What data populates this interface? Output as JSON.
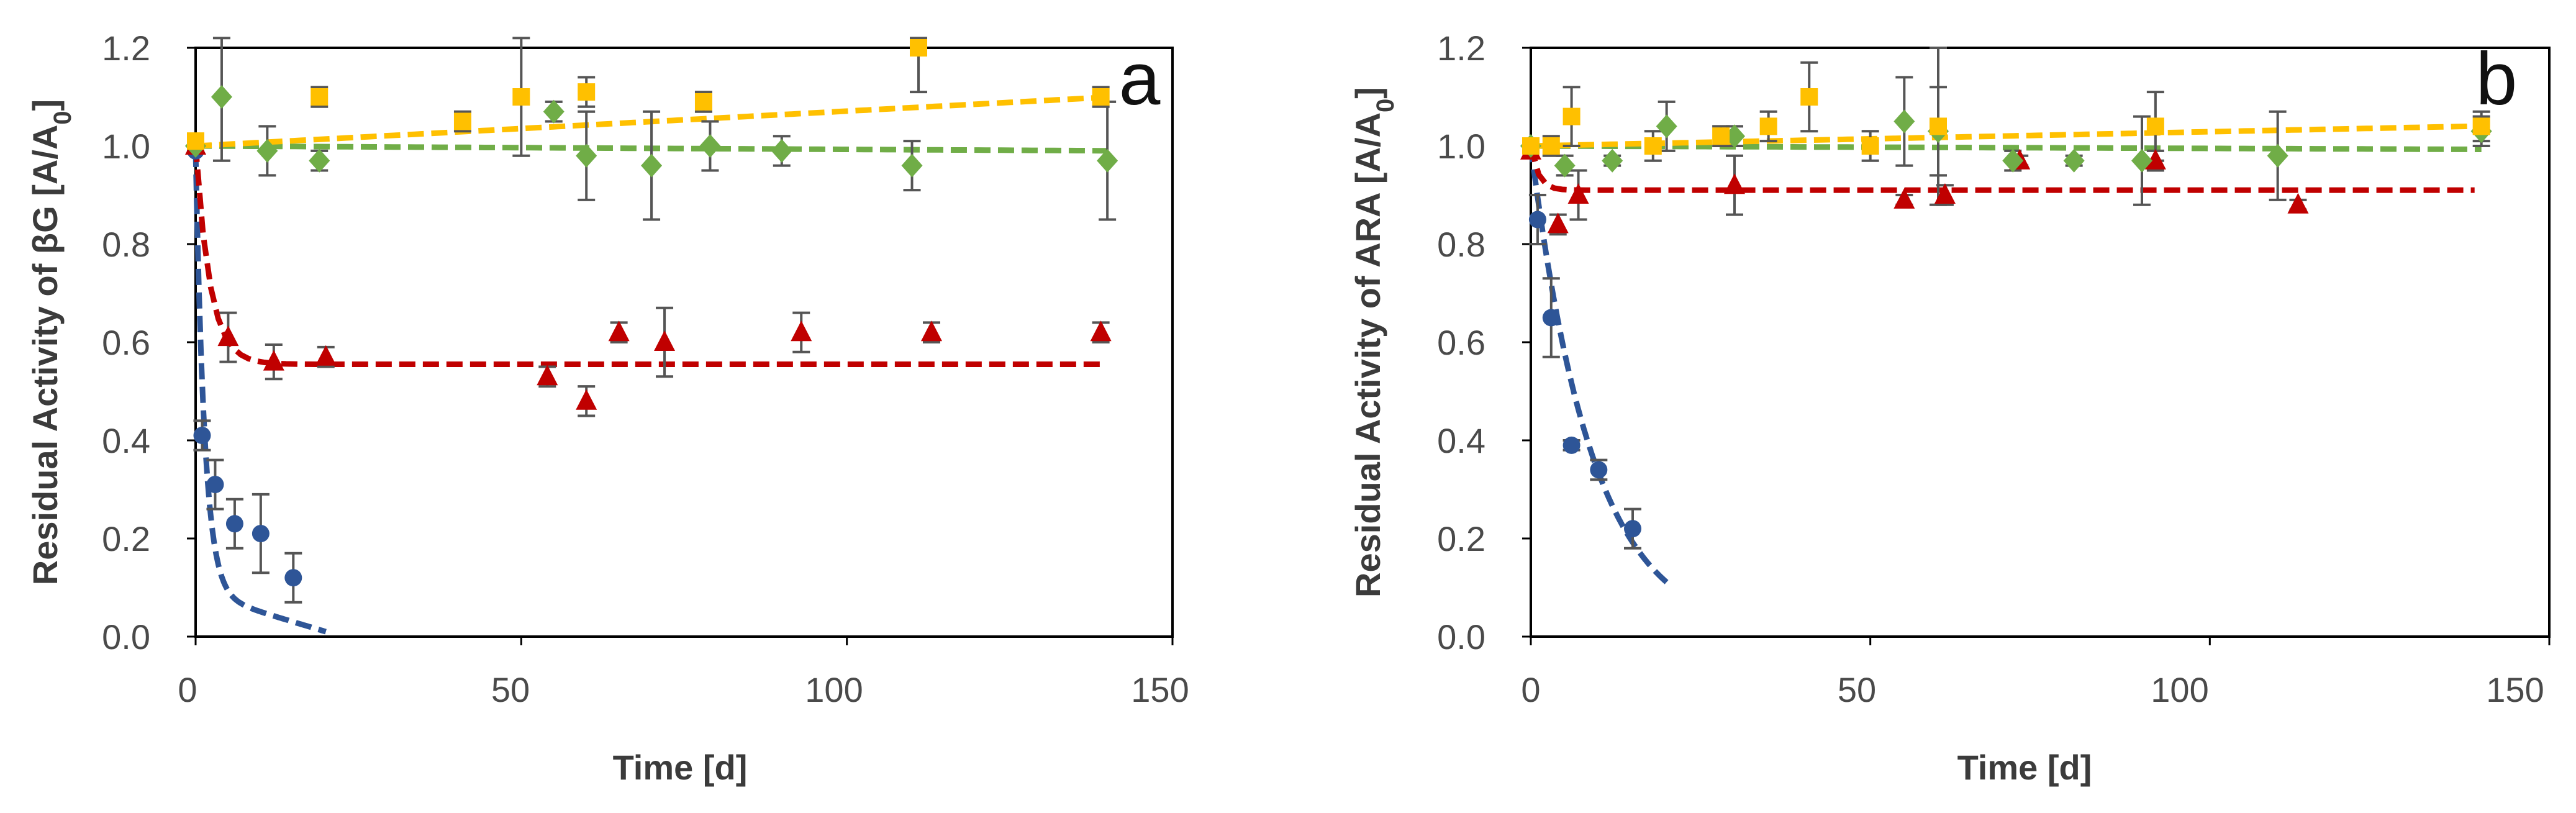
{
  "chart_data": [
    {
      "type": "scatter",
      "panel_label": "a",
      "xlabel": "Time [d]",
      "ylabel_prefix": "Residual Activity of βG [A/A",
      "ylabel_sub": "0",
      "ylabel_suffix": "]",
      "xlim": [
        0,
        150
      ],
      "ylim": [
        0,
        1.2
      ],
      "xticks": [
        0,
        50,
        100,
        150
      ],
      "yticks": [
        0.0,
        0.2,
        0.4,
        0.6,
        0.8,
        1.0,
        1.2
      ],
      "xtick_labels": [
        "0",
        "50",
        "100",
        "150"
      ],
      "ytick_labels": [
        "0.0",
        "0.2",
        "0.4",
        "0.6",
        "0.8",
        "1.0",
        "1.2"
      ],
      "series": [
        {
          "name": "blue",
          "color": "#2E5597",
          "marker": "circle",
          "x": [
            0,
            1,
            3,
            6,
            10,
            15
          ],
          "y": [
            0.99,
            0.41,
            0.31,
            0.23,
            0.21,
            0.12
          ],
          "err": [
            0,
            0.03,
            0.05,
            0.05,
            0.08,
            0.05
          ],
          "fit": {
            "kind": "decay",
            "a": 0.9,
            "k": 0.73,
            "c": 0.09,
            "d": 0.004,
            "x0": 0,
            "x1": 20
          }
        },
        {
          "name": "red",
          "color": "#C00000",
          "marker": "triangle",
          "x": [
            0,
            5,
            12,
            20,
            54,
            60,
            65,
            72,
            93,
            113,
            139
          ],
          "y": [
            1.0,
            0.61,
            0.56,
            0.57,
            0.53,
            0.48,
            0.62,
            0.6,
            0.62,
            0.62,
            0.62
          ],
          "err": [
            0,
            0.05,
            0.035,
            0.02,
            0.02,
            0.03,
            0.02,
            0.07,
            0.04,
            0.02,
            0.02
          ],
          "fit": {
            "kind": "expplateau",
            "a": 0.445,
            "k": 0.45,
            "c": 0.555,
            "x0": 0,
            "x1": 139
          }
        },
        {
          "name": "green",
          "color": "#70AD47",
          "marker": "diamond",
          "x": [
            0,
            4,
            11,
            19,
            55,
            60,
            70,
            79,
            90,
            110,
            140
          ],
          "y": [
            1.0,
            1.1,
            0.99,
            0.97,
            1.07,
            0.98,
            0.96,
            1.0,
            0.99,
            0.96,
            0.97
          ],
          "err": [
            0,
            0.13,
            0.05,
            0.02,
            0.02,
            0.09,
            0.11,
            0.05,
            0.03,
            0.05,
            0.12
          ],
          "fit": {
            "kind": "linear",
            "m": -7e-05,
            "c": 1.0,
            "x0": 0,
            "x1": 140
          }
        },
        {
          "name": "yellow",
          "color": "#FFC000",
          "marker": "square",
          "x": [
            0,
            19,
            41,
            50,
            60,
            78,
            111,
            139
          ],
          "y": [
            1.01,
            1.1,
            1.05,
            1.1,
            1.11,
            1.09,
            1.2,
            1.1
          ],
          "err": [
            0,
            0.02,
            0.02,
            0.12,
            0.03,
            0.02,
            0.09,
            0.02
          ],
          "fit": {
            "kind": "linear",
            "m": 0.00071,
            "c": 1.0,
            "x0": 0,
            "x1": 139
          }
        }
      ]
    },
    {
      "type": "scatter",
      "panel_label": "b",
      "xlabel": "Time [d]",
      "ylabel_prefix": "Residual Activity of ARA [A/A",
      "ylabel_sub": "0",
      "ylabel_suffix": "]",
      "xlim": [
        0,
        150
      ],
      "ylim": [
        0,
        1.2
      ],
      "xticks": [
        0,
        50,
        100,
        150
      ],
      "yticks": [
        0.0,
        0.2,
        0.4,
        0.6,
        0.8,
        1.0,
        1.2
      ],
      "xtick_labels": [
        "0",
        "50",
        "100",
        "150"
      ],
      "ytick_labels": [
        "0.0",
        "0.2",
        "0.4",
        "0.6",
        "0.8",
        "1.0",
        "1.2"
      ],
      "series": [
        {
          "name": "blue",
          "color": "#2E5597",
          "marker": "circle",
          "x": [
            0,
            1,
            3,
            6,
            10,
            15
          ],
          "y": [
            0.99,
            0.85,
            0.65,
            0.39,
            0.34,
            0.22
          ],
          "err": [
            0,
            0.05,
            0.08,
            0.01,
            0.02,
            0.04
          ],
          "fit": {
            "kind": "exp",
            "a": 1.0,
            "k": 0.11,
            "x0": 0,
            "x1": 20
          }
        },
        {
          "name": "red",
          "color": "#C00000",
          "marker": "triangle",
          "x": [
            0,
            4,
            7,
            30,
            55,
            61,
            72,
            92,
            113
          ],
          "y": [
            0.99,
            0.84,
            0.9,
            0.92,
            0.89,
            0.9,
            0.97,
            0.97,
            0.88
          ],
          "err": [
            0,
            0.02,
            0.05,
            0.06,
            0.01,
            0.02,
            0.01,
            0.02,
            0.01
          ],
          "fit": {
            "kind": "expplateau",
            "a": 0.09,
            "k": 0.9,
            "c": 0.91,
            "x0": 0,
            "x1": 139
          }
        },
        {
          "name": "green",
          "color": "#70AD47",
          "marker": "diamond",
          "x": [
            0,
            5,
            12,
            20,
            30,
            55,
            60,
            71,
            80,
            90,
            110,
            140
          ],
          "y": [
            1.0,
            0.96,
            0.97,
            1.04,
            1.02,
            1.05,
            1.03,
            0.97,
            0.97,
            0.97,
            0.98,
            1.03
          ],
          "err": [
            0,
            0.02,
            0.01,
            0.05,
            0.02,
            0.09,
            0.09,
            0.02,
            0.01,
            0.09,
            0.09,
            0.03
          ],
          "fit": {
            "kind": "linear",
            "m": -5e-05,
            "c": 1.0,
            "x0": 0,
            "x1": 140
          }
        },
        {
          "name": "yellow",
          "color": "#FFC000",
          "marker": "square",
          "x": [
            0,
            3,
            6,
            18,
            28,
            35,
            41,
            50,
            60,
            92,
            140
          ],
          "y": [
            1.0,
            1.0,
            1.06,
            1.0,
            1.02,
            1.04,
            1.1,
            1.0,
            1.04,
            1.04,
            1.04
          ],
          "err": [
            0,
            0.02,
            0.06,
            0.03,
            0.02,
            0.03,
            0.07,
            0.03,
            0.16,
            0.07,
            0.03
          ],
          "fit": {
            "kind": "linear",
            "m": 0.00029,
            "c": 1.0,
            "x0": 0,
            "x1": 140
          }
        }
      ]
    }
  ]
}
